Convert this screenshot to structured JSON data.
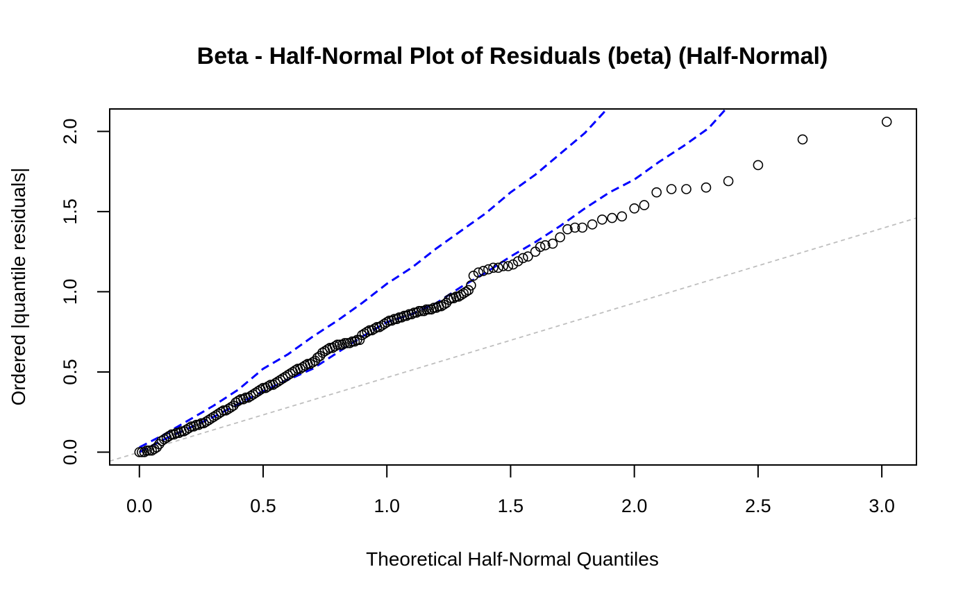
{
  "chart_data": {
    "type": "scatter",
    "title": "Beta - Half-Normal Plot of Residuals (beta) (Half-Normal)",
    "xlabel": "Theoretical Half-Normal Quantiles",
    "ylabel": "Ordered |quantile residuals|",
    "xlim": [
      -0.12,
      3.14
    ],
    "ylim": [
      -0.08,
      2.14
    ],
    "x_ticks": [
      "0.0",
      "0.5",
      "1.0",
      "1.5",
      "2.0",
      "2.5",
      "3.0"
    ],
    "y_ticks": [
      "0.0",
      "0.5",
      "1.0",
      "1.5",
      "2.0"
    ],
    "grid": false,
    "colors": {
      "points": "#000000",
      "envelope": "#0000ff",
      "reference": "#bebebe"
    },
    "reference_line": {
      "intercept": 0.0,
      "slope": 0.465
    },
    "envelope_lower": {
      "x": [
        0.0,
        0.1,
        0.2,
        0.3,
        0.4,
        0.5,
        0.6,
        0.7,
        0.8,
        0.9,
        1.0,
        1.1,
        1.2,
        1.3,
        1.4,
        1.5,
        1.6,
        1.7,
        1.8,
        1.9,
        2.0,
        2.1,
        2.2,
        2.3,
        2.37
      ],
      "y": [
        0.0,
        0.08,
        0.15,
        0.22,
        0.3,
        0.38,
        0.45,
        0.52,
        0.62,
        0.72,
        0.81,
        0.86,
        0.93,
        1.03,
        1.12,
        1.22,
        1.31,
        1.41,
        1.52,
        1.62,
        1.7,
        1.81,
        1.91,
        2.02,
        2.14
      ]
    },
    "envelope_upper": {
      "x": [
        0.0,
        0.1,
        0.2,
        0.3,
        0.4,
        0.5,
        0.6,
        0.7,
        0.8,
        0.9,
        1.0,
        1.1,
        1.2,
        1.3,
        1.4,
        1.5,
        1.6,
        1.7,
        1.8,
        1.89
      ],
      "y": [
        0.03,
        0.11,
        0.2,
        0.29,
        0.39,
        0.52,
        0.61,
        0.72,
        0.82,
        0.93,
        1.05,
        1.15,
        1.27,
        1.38,
        1.49,
        1.62,
        1.73,
        1.86,
        1.99,
        2.14
      ]
    },
    "series": [
      {
        "x": [
          0.0,
          0.01,
          0.02,
          0.03,
          0.04,
          0.05,
          0.06,
          0.07,
          0.08,
          0.09,
          0.1,
          0.11,
          0.12,
          0.13,
          0.14,
          0.15,
          0.16,
          0.17,
          0.18,
          0.19,
          0.2,
          0.21,
          0.22,
          0.23,
          0.24,
          0.25,
          0.26,
          0.27,
          0.28,
          0.29,
          0.3,
          0.31,
          0.32,
          0.33,
          0.34,
          0.35,
          0.36,
          0.37,
          0.38,
          0.39,
          0.4,
          0.41,
          0.42,
          0.43,
          0.44,
          0.45,
          0.46,
          0.47,
          0.48,
          0.49,
          0.5,
          0.51,
          0.52,
          0.53,
          0.54,
          0.55,
          0.56,
          0.57,
          0.58,
          0.59,
          0.6,
          0.61,
          0.62,
          0.63,
          0.64,
          0.65,
          0.66,
          0.67,
          0.68,
          0.69,
          0.7,
          0.71,
          0.72,
          0.73,
          0.74,
          0.75,
          0.76,
          0.77,
          0.78,
          0.79,
          0.8,
          0.81,
          0.82,
          0.83,
          0.84,
          0.85,
          0.86,
          0.87,
          0.88,
          0.89,
          0.9,
          0.91,
          0.92,
          0.93,
          0.94,
          0.95,
          0.96,
          0.97,
          0.98,
          0.99,
          1.0,
          1.01,
          1.02,
          1.03,
          1.04,
          1.05,
          1.06,
          1.07,
          1.08,
          1.09,
          1.1,
          1.11,
          1.12,
          1.13,
          1.14,
          1.15,
          1.16,
          1.17,
          1.18,
          1.19,
          1.2,
          1.21,
          1.22,
          1.23,
          1.24,
          1.25,
          1.26,
          1.27,
          1.28,
          1.29,
          1.3,
          1.31,
          1.32,
          1.33,
          1.34,
          1.35,
          1.37,
          1.39,
          1.41,
          1.43,
          1.45,
          1.47,
          1.49,
          1.51,
          1.53,
          1.55,
          1.57,
          1.6,
          1.62,
          1.64,
          1.67,
          1.7,
          1.73,
          1.76,
          1.79,
          1.83,
          1.87,
          1.91,
          1.95,
          2.0,
          2.04,
          2.09,
          2.15,
          2.21,
          2.29,
          2.38,
          2.5,
          2.68,
          3.02
        ],
        "y": [
          0.0,
          0.0,
          0.0,
          0.01,
          0.01,
          0.01,
          0.02,
          0.03,
          0.05,
          0.07,
          0.08,
          0.09,
          0.1,
          0.11,
          0.11,
          0.12,
          0.12,
          0.13,
          0.13,
          0.14,
          0.15,
          0.16,
          0.16,
          0.17,
          0.17,
          0.18,
          0.18,
          0.19,
          0.2,
          0.21,
          0.22,
          0.23,
          0.24,
          0.25,
          0.26,
          0.26,
          0.27,
          0.28,
          0.29,
          0.31,
          0.32,
          0.33,
          0.33,
          0.34,
          0.34,
          0.35,
          0.36,
          0.37,
          0.38,
          0.39,
          0.4,
          0.4,
          0.41,
          0.42,
          0.42,
          0.43,
          0.44,
          0.45,
          0.46,
          0.47,
          0.48,
          0.49,
          0.5,
          0.51,
          0.52,
          0.52,
          0.53,
          0.54,
          0.55,
          0.55,
          0.56,
          0.57,
          0.59,
          0.6,
          0.62,
          0.63,
          0.64,
          0.65,
          0.65,
          0.66,
          0.67,
          0.67,
          0.67,
          0.68,
          0.68,
          0.68,
          0.69,
          0.69,
          0.7,
          0.7,
          0.73,
          0.74,
          0.75,
          0.76,
          0.76,
          0.77,
          0.78,
          0.78,
          0.79,
          0.8,
          0.81,
          0.82,
          0.82,
          0.83,
          0.83,
          0.84,
          0.84,
          0.85,
          0.85,
          0.86,
          0.86,
          0.87,
          0.87,
          0.88,
          0.88,
          0.88,
          0.89,
          0.89,
          0.89,
          0.9,
          0.9,
          0.91,
          0.91,
          0.92,
          0.93,
          0.95,
          0.96,
          0.96,
          0.97,
          0.97,
          0.98,
          0.99,
          1.0,
          1.01,
          1.04,
          1.1,
          1.12,
          1.13,
          1.14,
          1.15,
          1.15,
          1.16,
          1.16,
          1.17,
          1.19,
          1.21,
          1.22,
          1.25,
          1.28,
          1.29,
          1.3,
          1.34,
          1.39,
          1.4,
          1.4,
          1.42,
          1.45,
          1.46,
          1.47,
          1.52,
          1.54,
          1.62,
          1.64,
          1.64,
          1.65,
          1.69,
          1.79,
          1.95,
          2.06
        ]
      }
    ]
  }
}
